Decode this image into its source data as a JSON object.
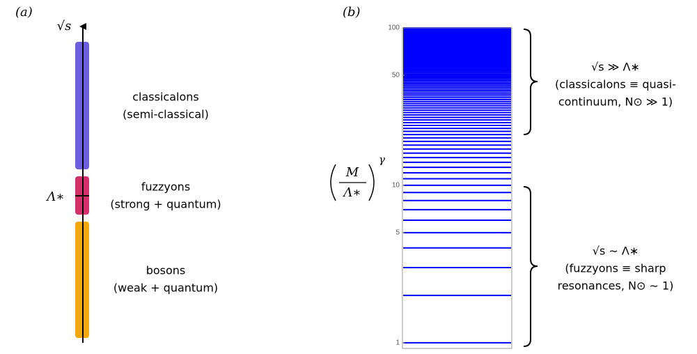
{
  "panel_a": {
    "label": "(a)",
    "axis_label": "√s",
    "scale_label": "Λ∗",
    "regions": [
      {
        "name": "classicalons",
        "description": "(semi-classical)"
      },
      {
        "name": "fuzzyons",
        "description": "(strong + quantum)"
      },
      {
        "name": "bosons",
        "description": "(weak + quantum)"
      }
    ]
  },
  "chart_data": {
    "type": "spectrum",
    "panel_label": "(b)",
    "y_label": {
      "numerator": "M",
      "denominator": "Λ∗",
      "exponent": "γ"
    },
    "values": [
      1,
      2,
      3,
      4,
      5,
      6,
      7,
      8,
      9,
      10,
      11,
      12,
      13,
      14,
      15,
      16,
      17,
      18,
      19,
      20,
      21,
      22,
      23,
      24,
      25,
      26,
      27,
      28,
      29,
      30,
      31,
      32,
      33,
      34,
      35,
      36,
      37,
      38,
      39,
      40,
      41,
      42,
      43,
      44,
      45,
      46,
      47,
      48,
      49,
      50,
      51,
      52,
      53,
      54,
      55,
      56,
      57,
      58,
      59,
      60,
      61,
      62,
      63,
      64,
      65,
      66,
      67,
      68,
      69,
      70,
      71,
      72,
      73,
      74,
      75,
      76,
      77,
      78,
      79,
      80,
      81,
      82,
      83,
      84,
      85,
      86,
      87,
      88,
      89,
      90,
      91,
      92,
      93,
      94,
      95,
      96,
      97,
      98,
      99,
      100
    ],
    "color": "#0000ff",
    "ylim": [
      0.92,
      100
    ],
    "yticks": [
      1,
      5,
      10,
      50,
      100
    ],
    "log_scale": true,
    "annotations": [
      {
        "lines": [
          "√s ≫ Λ∗",
          "(classicalons ≡ quasi-",
          "continuum, N⊙ ≫ 1)"
        ]
      },
      {
        "lines": [
          "√s ∼ Λ∗",
          "(fuzzyons ≡ sharp",
          "resonances, N⊙ ∼ 1)"
        ]
      }
    ]
  }
}
